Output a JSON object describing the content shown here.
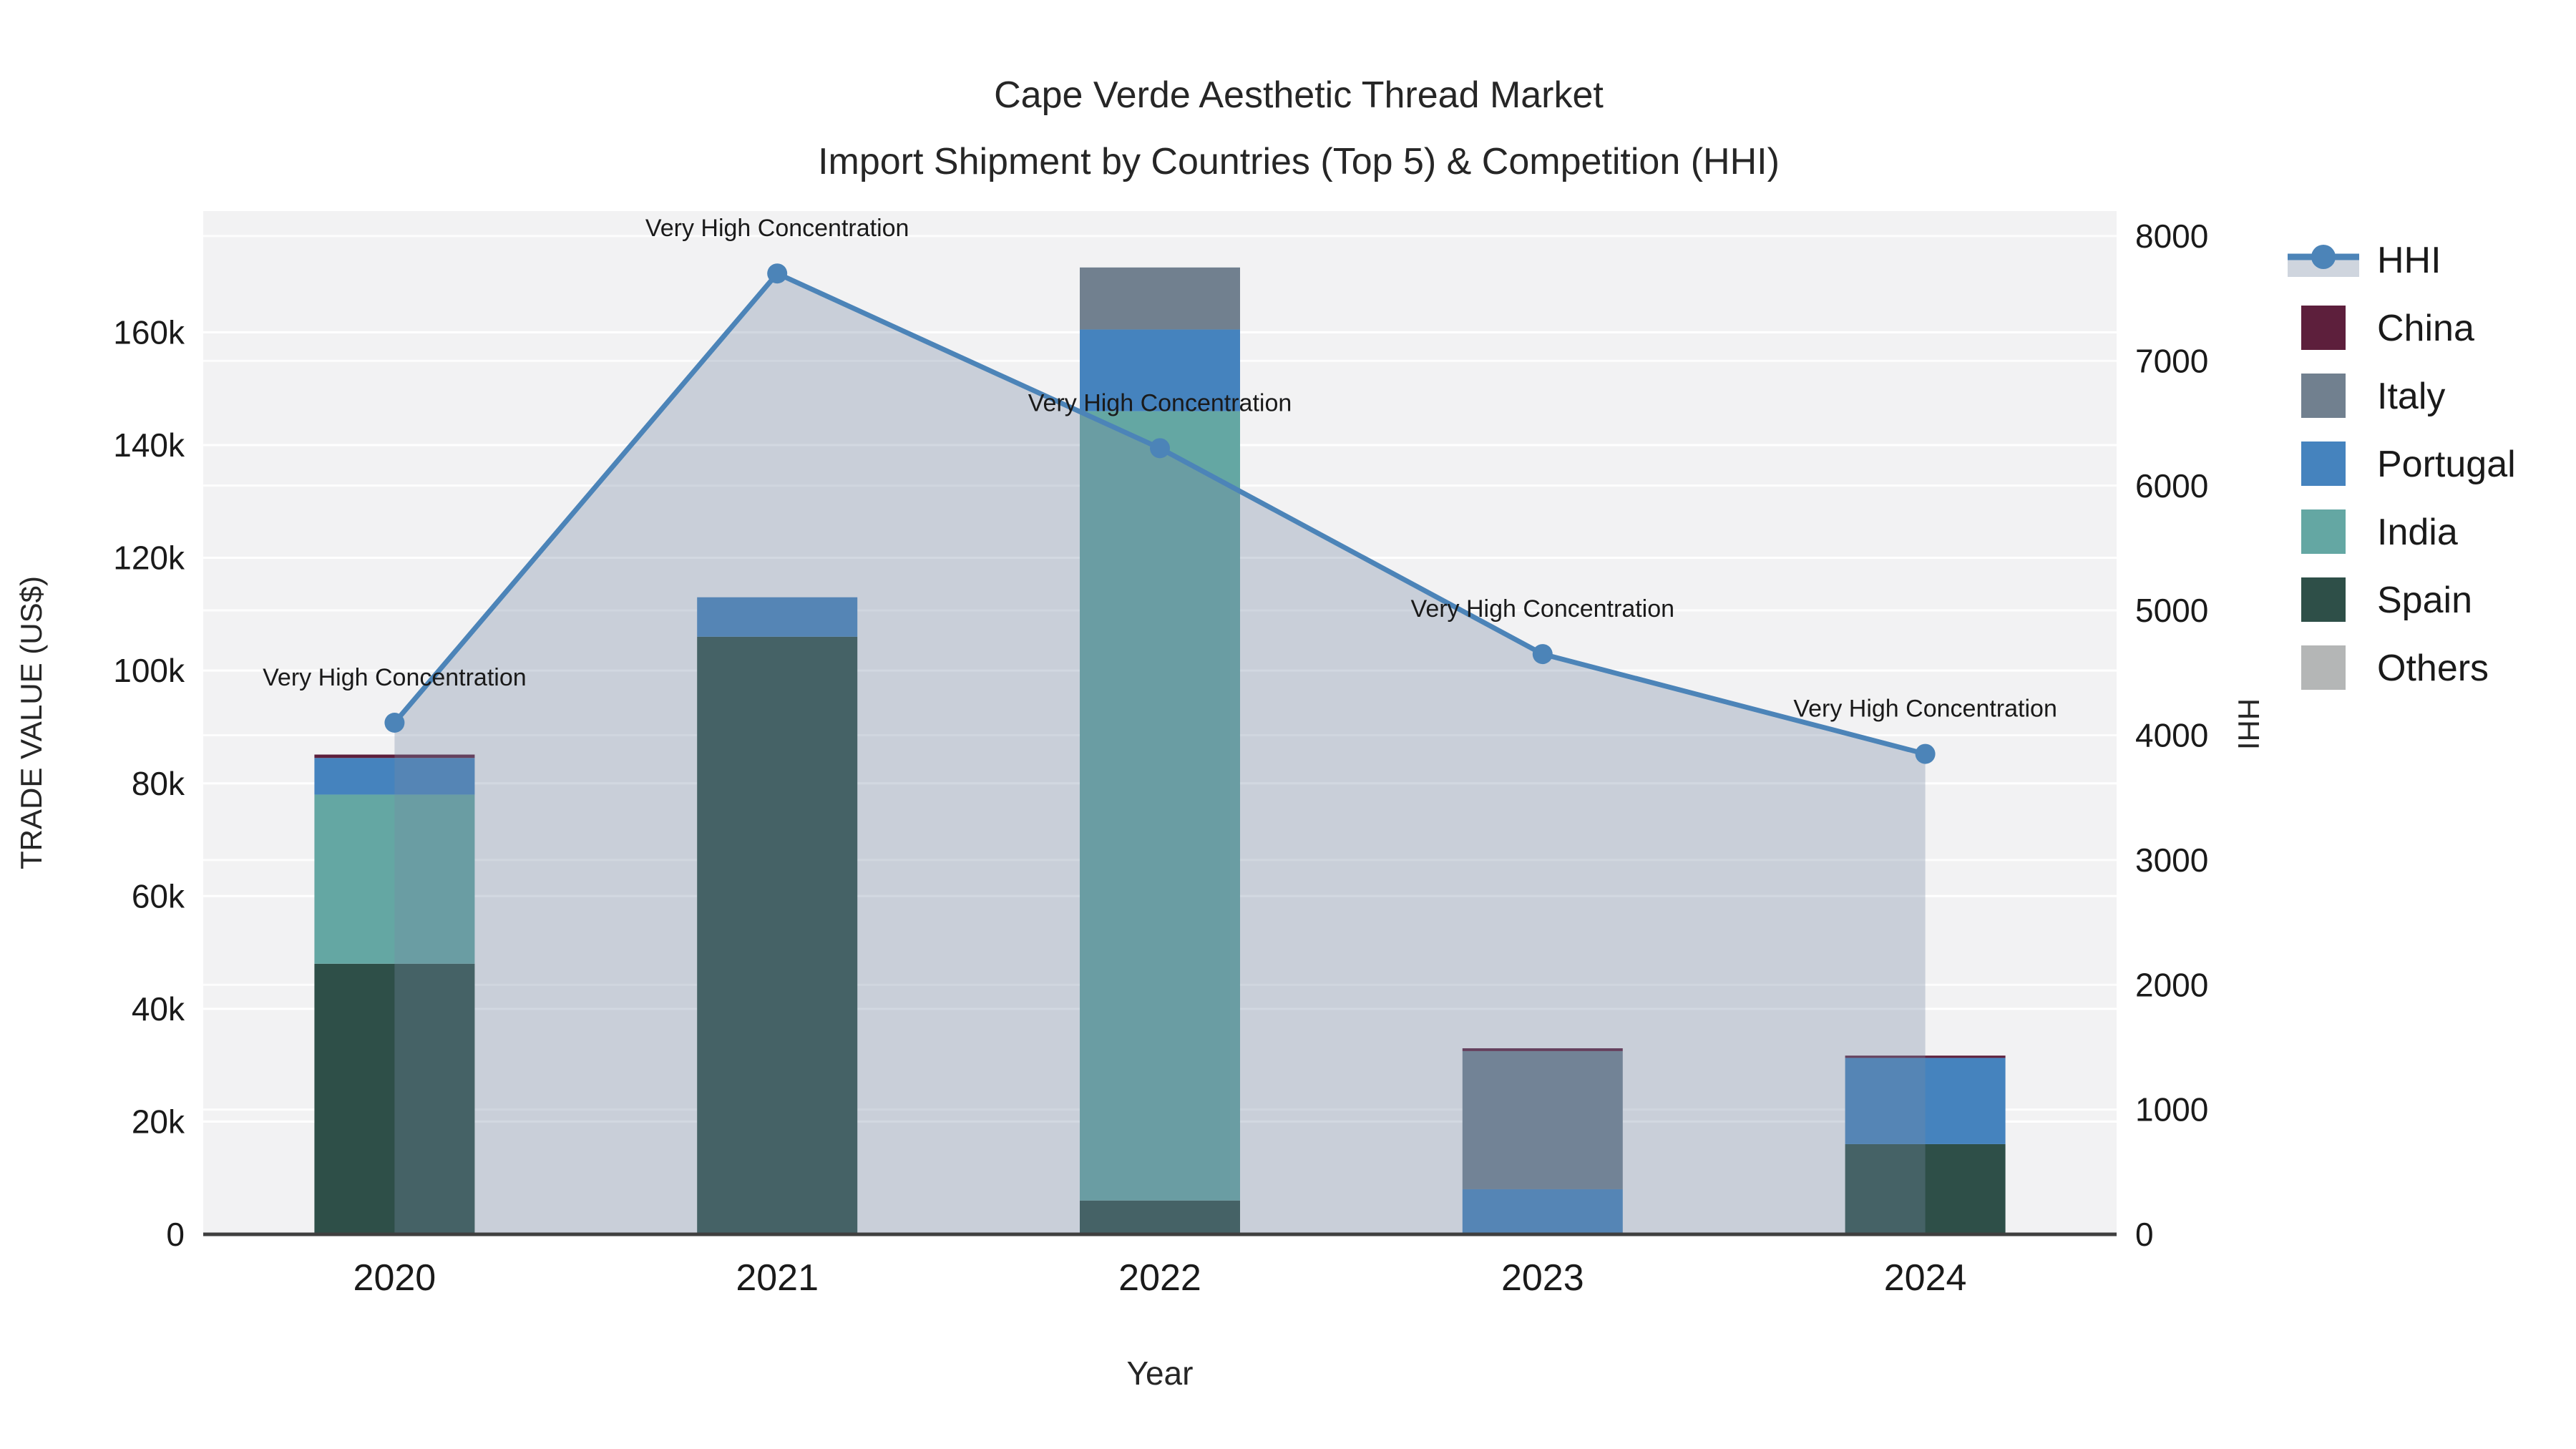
{
  "title": {
    "line1": "Cape Verde Aesthetic Thread Market",
    "line2": "Import Shipment by Countries (Top 5) & Competition (HHI)"
  },
  "axes": {
    "x": {
      "title": "Year",
      "tick_labels": [
        "2020",
        "2021",
        "2022",
        "2023",
        "2024"
      ]
    },
    "left": {
      "title": "TRADE VALUE (US$)",
      "tick_labels": [
        "0",
        "20k",
        "40k",
        "60k",
        "80k",
        "100k",
        "120k",
        "140k",
        "160k"
      ],
      "tick_values": [
        0,
        20000,
        40000,
        60000,
        80000,
        100000,
        120000,
        140000,
        160000
      ],
      "range": [
        0,
        181500
      ]
    },
    "right": {
      "title": "HHI",
      "tick_labels": [
        "0",
        "1000",
        "2000",
        "3000",
        "4000",
        "5000",
        "6000",
        "7000",
        "8000"
      ],
      "tick_values": [
        0,
        1000,
        2000,
        3000,
        4000,
        5000,
        6000,
        7000,
        8000
      ],
      "range": [
        0,
        8200
      ]
    }
  },
  "chart_data": {
    "type": "bar",
    "subtype": "stacked-bars-with-line-on-secondary-axis",
    "title": "Cape Verde Aesthetic Thread Market — Import Shipment by Countries (Top 5) & Competition (HHI)",
    "xlabel": "Year",
    "ylabel_left": "TRADE VALUE (US$)",
    "ylabel_right": "HHI",
    "categories": [
      "2020",
      "2021",
      "2022",
      "2023",
      "2024"
    ],
    "series": [
      {
        "name": "China",
        "color": "#5D1F3C",
        "values": [
          600,
          0,
          0,
          500,
          400
        ]
      },
      {
        "name": "Italy",
        "color": "#71808F",
        "values": [
          0,
          0,
          11000,
          24500,
          0
        ]
      },
      {
        "name": "Portugal",
        "color": "#4583BE",
        "values": [
          6500,
          7000,
          14500,
          8000,
          15300
        ]
      },
      {
        "name": "India",
        "color": "#64A7A3",
        "values": [
          30000,
          0,
          140000,
          0,
          0
        ]
      },
      {
        "name": "Spain",
        "color": "#2E4F48",
        "values": [
          48000,
          106000,
          6000,
          0,
          16000
        ]
      },
      {
        "name": "Others",
        "color": "#B4B6B6",
        "values": [
          0,
          0,
          0,
          0,
          0
        ]
      }
    ],
    "stack_order_bottom_to_top": [
      "Spain",
      "India",
      "Portugal",
      "Italy",
      "China",
      "Others"
    ],
    "line_series": {
      "name": "HHI",
      "axis": "right",
      "color": "#4C84B8",
      "area_fill": "rgba(119,136,164,0.33)",
      "values": [
        4100,
        7700,
        6300,
        4650,
        3850
      ]
    },
    "annotations": [
      {
        "text": "Very High Concentration",
        "category": "2020",
        "hhi": 4100
      },
      {
        "text": "Very High Concentration",
        "category": "2021",
        "hhi": 7700
      },
      {
        "text": "Very High Concentration",
        "category": "2022",
        "hhi": 6300
      },
      {
        "text": "Very High Concentration",
        "category": "2023",
        "hhi": 4650
      },
      {
        "text": "Very High Concentration",
        "category": "2024",
        "hhi": 3850
      }
    ],
    "ylim_left": [
      0,
      181500
    ],
    "ylim_right": [
      0,
      8200
    ],
    "grid": true,
    "legend_position": "right"
  },
  "legend": {
    "items": [
      {
        "label": "HHI",
        "type": "line",
        "color": "#4C84B8",
        "band": "#CFD5DE"
      },
      {
        "label": "China",
        "type": "square",
        "color": "#5D1F3C"
      },
      {
        "label": "Italy",
        "type": "square",
        "color": "#71808F"
      },
      {
        "label": "Portugal",
        "type": "square",
        "color": "#4583BE"
      },
      {
        "label": "India",
        "type": "square",
        "color": "#64A7A3"
      },
      {
        "label": "Spain",
        "type": "square",
        "color": "#2E4F48"
      },
      {
        "label": "Others",
        "type": "square",
        "color": "#B4B6B6"
      }
    ]
  },
  "colors": {
    "plot_bg": "#F2F2F3",
    "grid": "#FFFFFF",
    "axis_line": "#3F3F3F",
    "tick_text": "#262626",
    "annotation_text": "#1A1A1A"
  }
}
